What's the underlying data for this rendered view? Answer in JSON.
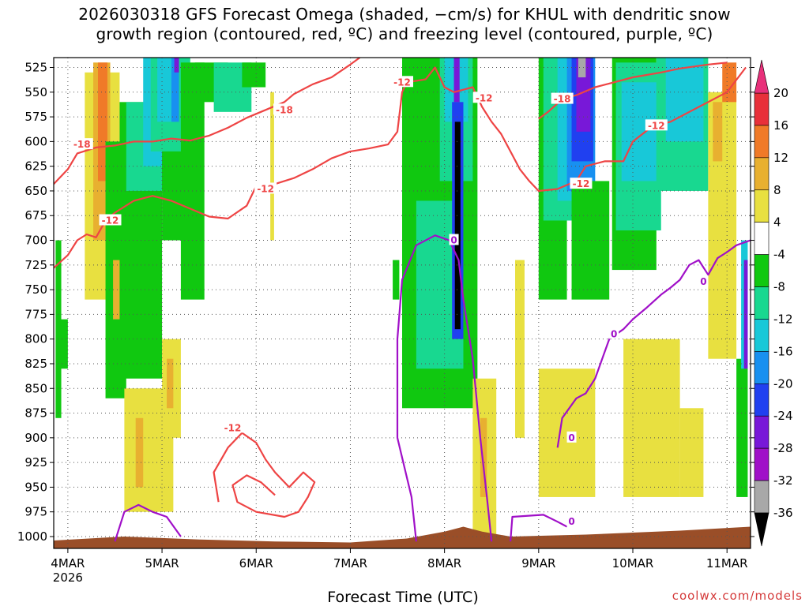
{
  "title_line1": "2026030318 GFS Forecast Omega (shaded, −cm/s) for KHUL with dendritic snow",
  "title_line2": "growth region (contoured, red, ºC) and freezing level (contoured, purple, ºC)",
  "credit": "coolwx.com/models",
  "chart_data": {
    "type": "heatmap",
    "xlabel": "Forecast Time (UTC)",
    "ylabel": "",
    "x_ticks": [
      "4MAR",
      "5MAR",
      "6MAR",
      "7MAR",
      "8MAR",
      "9MAR",
      "10MAR",
      "11MAR"
    ],
    "x_tick_sublabel": "2026",
    "y_ticks": [
      525,
      550,
      575,
      600,
      625,
      650,
      675,
      700,
      725,
      750,
      775,
      800,
      825,
      850,
      875,
      900,
      925,
      950,
      975,
      1000
    ],
    "ylim": [
      515,
      1012
    ],
    "xlim_days": [
      3.85,
      11.25
    ],
    "colorbar": {
      "labels": [
        20,
        16,
        12,
        8,
        4,
        -4,
        -8,
        -12,
        -16,
        -20,
        -24,
        -28,
        -32,
        -36
      ],
      "bins": [
        {
          "from": 20,
          "to": 16,
          "color": "#e8303a"
        },
        {
          "from": 16,
          "to": 12,
          "color": "#f07a28"
        },
        {
          "from": 12,
          "to": 8,
          "color": "#e8b030"
        },
        {
          "from": 8,
          "to": 4,
          "color": "#e8e040"
        },
        {
          "from": 4,
          "to": -4,
          "color": "#ffffff"
        },
        {
          "from": -4,
          "to": -8,
          "color": "#10c810"
        },
        {
          "from": -8,
          "to": -12,
          "color": "#18d890"
        },
        {
          "from": -12,
          "to": -16,
          "color": "#18c8d8"
        },
        {
          "from": -16,
          "to": -20,
          "color": "#1890f0"
        },
        {
          "from": -20,
          "to": -24,
          "color": "#2040f0"
        },
        {
          "from": -24,
          "to": -28,
          "color": "#7818d8"
        },
        {
          "from": -28,
          "to": -32,
          "color": "#a010c8"
        },
        {
          "from": -32,
          "to": -36,
          "color": "#a8a8a8"
        }
      ],
      "top_arrow_color": "#e8307a",
      "bottom_arrow_color": "#000000"
    },
    "omega_patches": [
      {
        "t0": 3.87,
        "t1": 3.93,
        "p0": 700,
        "p1": 880,
        "color": "#10c810"
      },
      {
        "t0": 3.92,
        "t1": 4.0,
        "p0": 780,
        "p1": 830,
        "color": "#10c810"
      },
      {
        "t0": 4.18,
        "t1": 4.55,
        "p0": 530,
        "p1": 760,
        "color": "#e8e040"
      },
      {
        "t0": 4.27,
        "t1": 4.45,
        "p0": 520,
        "p1": 700,
        "color": "#e8b030"
      },
      {
        "t0": 4.32,
        "t1": 4.42,
        "p0": 520,
        "p1": 640,
        "color": "#f07a28"
      },
      {
        "t0": 4.4,
        "t1": 4.62,
        "p0": 600,
        "p1": 860,
        "color": "#10c810"
      },
      {
        "t0": 4.55,
        "t1": 5.0,
        "p0": 560,
        "p1": 840,
        "color": "#10c810"
      },
      {
        "t0": 4.62,
        "t1": 5.05,
        "p0": 560,
        "p1": 650,
        "color": "#18d890"
      },
      {
        "t0": 4.8,
        "t1": 5.05,
        "p0": 515,
        "p1": 625,
        "color": "#18c8d8"
      },
      {
        "t0": 5.0,
        "t1": 5.35,
        "p0": 560,
        "p1": 700,
        "color": "#10c810"
      },
      {
        "t0": 4.88,
        "t1": 5.3,
        "p0": 515,
        "p1": 610,
        "color": "#18d890"
      },
      {
        "t0": 4.95,
        "t1": 5.15,
        "p0": 515,
        "p1": 580,
        "color": "#18c8d8"
      },
      {
        "t0": 5.1,
        "t1": 5.18,
        "p0": 515,
        "p1": 580,
        "color": "#1890f0"
      },
      {
        "t0": 5.13,
        "t1": 5.18,
        "p0": 515,
        "p1": 530,
        "color": "#7818d8"
      },
      {
        "t0": 5.2,
        "t1": 5.45,
        "p0": 520,
        "p1": 760,
        "color": "#10c810"
      },
      {
        "t0": 5.35,
        "t1": 5.7,
        "p0": 520,
        "p1": 560,
        "color": "#10c810"
      },
      {
        "t0": 5.55,
        "t1": 5.95,
        "p0": 520,
        "p1": 570,
        "color": "#18d890"
      },
      {
        "t0": 5.85,
        "t1": 6.1,
        "p0": 520,
        "p1": 545,
        "color": "#10c810"
      },
      {
        "t0": 4.6,
        "t1": 5.12,
        "p0": 850,
        "p1": 975,
        "color": "#e8e040"
      },
      {
        "t0": 4.72,
        "t1": 4.8,
        "p0": 880,
        "p1": 950,
        "color": "#e8b030"
      },
      {
        "t0": 5.0,
        "t1": 5.2,
        "p0": 800,
        "p1": 900,
        "color": "#e8e040"
      },
      {
        "t0": 5.05,
        "t1": 5.12,
        "p0": 820,
        "p1": 870,
        "color": "#e8b030"
      },
      {
        "t0": 4.48,
        "t1": 4.55,
        "p0": 720,
        "p1": 780,
        "color": "#e8b030"
      },
      {
        "t0": 6.15,
        "t1": 6.19,
        "p0": 550,
        "p1": 700,
        "color": "#e8e040"
      },
      {
        "t0": 7.45,
        "t1": 7.52,
        "p0": 720,
        "p1": 760,
        "color": "#10c810"
      },
      {
        "t0": 7.55,
        "t1": 8.35,
        "p0": 515,
        "p1": 870,
        "color": "#10c810"
      },
      {
        "t0": 7.7,
        "t1": 8.2,
        "p0": 660,
        "p1": 830,
        "color": "#18d890"
      },
      {
        "t0": 7.95,
        "t1": 8.3,
        "p0": 515,
        "p1": 640,
        "color": "#18d890"
      },
      {
        "t0": 8.0,
        "t1": 8.25,
        "p0": 515,
        "p1": 580,
        "color": "#18c8d8"
      },
      {
        "t0": 8.08,
        "t1": 8.2,
        "p0": 560,
        "p1": 800,
        "color": "#2040f0"
      },
      {
        "t0": 8.11,
        "t1": 8.17,
        "p0": 580,
        "p1": 790,
        "color": "#000000"
      },
      {
        "t0": 8.1,
        "t1": 8.16,
        "p0": 515,
        "p1": 560,
        "color": "#7818d8"
      },
      {
        "t0": 8.3,
        "t1": 8.55,
        "p0": 840,
        "p1": 1000,
        "color": "#e8e040"
      },
      {
        "t0": 8.38,
        "t1": 8.45,
        "p0": 880,
        "p1": 960,
        "color": "#e8b030"
      },
      {
        "t0": 8.75,
        "t1": 8.85,
        "p0": 720,
        "p1": 900,
        "color": "#e8e040"
      },
      {
        "t0": 9.0,
        "t1": 9.3,
        "p0": 515,
        "p1": 760,
        "color": "#10c810"
      },
      {
        "t0": 9.05,
        "t1": 9.55,
        "p0": 515,
        "p1": 680,
        "color": "#18d890"
      },
      {
        "t0": 9.2,
        "t1": 9.5,
        "p0": 515,
        "p1": 660,
        "color": "#18c8d8"
      },
      {
        "t0": 9.3,
        "t1": 9.6,
        "p0": 515,
        "p1": 650,
        "color": "#1890f0"
      },
      {
        "t0": 9.35,
        "t1": 9.58,
        "p0": 515,
        "p1": 620,
        "color": "#2040f0"
      },
      {
        "t0": 9.4,
        "t1": 9.55,
        "p0": 515,
        "p1": 590,
        "color": "#7818d8"
      },
      {
        "t0": 9.42,
        "t1": 9.5,
        "p0": 515,
        "p1": 535,
        "color": "#a8a8a8"
      },
      {
        "t0": 9.35,
        "t1": 9.75,
        "p0": 640,
        "p1": 760,
        "color": "#10c810"
      },
      {
        "t0": 9.78,
        "t1": 10.25,
        "p0": 515,
        "p1": 730,
        "color": "#10c810"
      },
      {
        "t0": 9.82,
        "t1": 10.3,
        "p0": 520,
        "p1": 690,
        "color": "#18d890"
      },
      {
        "t0": 9.88,
        "t1": 10.25,
        "p0": 540,
        "p1": 640,
        "color": "#18c8d8"
      },
      {
        "t0": 10.25,
        "t1": 10.8,
        "p0": 515,
        "p1": 650,
        "color": "#18d890"
      },
      {
        "t0": 10.35,
        "t1": 10.75,
        "p0": 515,
        "p1": 600,
        "color": "#18c8d8"
      },
      {
        "t0": 9.0,
        "t1": 9.6,
        "p0": 830,
        "p1": 960,
        "color": "#e8e040"
      },
      {
        "t0": 9.2,
        "t1": 9.45,
        "p0": 890,
        "p1": 945,
        "color": "#e8e040"
      },
      {
        "t0": 9.9,
        "t1": 10.5,
        "p0": 800,
        "p1": 960,
        "color": "#e8e040"
      },
      {
        "t0": 10.5,
        "t1": 10.75,
        "p0": 870,
        "p1": 960,
        "color": "#e8e040"
      },
      {
        "t0": 10.8,
        "t1": 11.1,
        "p0": 550,
        "p1": 820,
        "color": "#e8e040"
      },
      {
        "t0": 10.85,
        "t1": 10.95,
        "p0": 560,
        "p1": 620,
        "color": "#e8b030"
      },
      {
        "t0": 10.95,
        "t1": 11.1,
        "p0": 520,
        "p1": 560,
        "color": "#f07a28"
      },
      {
        "t0": 11.1,
        "t1": 11.22,
        "p0": 820,
        "p1": 960,
        "color": "#10c810"
      },
      {
        "t0": 11.15,
        "t1": 11.22,
        "p0": 700,
        "p1": 830,
        "color": "#18c8d8"
      },
      {
        "t0": 11.18,
        "t1": 11.22,
        "p0": 720,
        "p1": 830,
        "color": "#7818d8"
      }
    ],
    "contours": [
      {
        "color": "#ee4444",
        "label": "-12",
        "label_at": [
          4.45,
          680
        ],
        "points": [
          [
            3.85,
            728
          ],
          [
            4.0,
            715
          ],
          [
            4.1,
            700
          ],
          [
            4.2,
            694
          ],
          [
            4.3,
            697
          ],
          [
            4.4,
            680
          ],
          [
            4.5,
            672
          ],
          [
            4.7,
            660
          ],
          [
            4.9,
            655
          ],
          [
            5.1,
            660
          ],
          [
            5.3,
            668
          ],
          [
            5.5,
            676
          ],
          [
            5.7,
            678
          ],
          [
            5.9,
            665
          ],
          [
            6.0,
            645
          ],
          [
            6.2,
            643
          ],
          [
            6.4,
            637
          ],
          [
            6.6,
            628
          ],
          [
            6.8,
            617
          ],
          [
            7.0,
            610
          ],
          [
            7.2,
            607
          ],
          [
            7.4,
            603
          ],
          [
            7.5,
            590
          ],
          [
            7.55,
            550
          ],
          [
            7.6,
            540
          ],
          [
            7.8,
            537
          ],
          [
            7.9,
            525
          ],
          [
            8.0,
            545
          ],
          [
            8.1,
            550
          ],
          [
            8.3,
            545
          ],
          [
            8.4,
            565
          ],
          [
            8.5,
            580
          ],
          [
            8.6,
            592
          ],
          [
            8.7,
            610
          ],
          [
            8.8,
            628
          ],
          [
            8.9,
            640
          ],
          [
            9.0,
            650
          ],
          [
            9.2,
            648
          ],
          [
            9.4,
            640
          ],
          [
            9.5,
            625
          ],
          [
            9.7,
            620
          ],
          [
            9.9,
            620
          ],
          [
            10.0,
            600
          ],
          [
            10.2,
            585
          ],
          [
            10.4,
            580
          ],
          [
            10.6,
            570
          ],
          [
            10.8,
            560
          ],
          [
            11.0,
            550
          ],
          [
            11.2,
            525
          ]
        ]
      },
      {
        "color": "#ee4444",
        "label": "-18",
        "label_at": [
          4.15,
          603
        ],
        "points": [
          [
            3.85,
            643
          ],
          [
            4.0,
            628
          ],
          [
            4.1,
            612
          ],
          [
            4.3,
            606
          ],
          [
            4.5,
            604
          ],
          [
            4.7,
            600
          ],
          [
            4.9,
            600
          ],
          [
            5.1,
            597
          ],
          [
            5.3,
            599
          ],
          [
            5.5,
            594
          ],
          [
            5.7,
            586
          ],
          [
            5.9,
            576
          ],
          [
            6.1,
            568
          ],
          [
            6.3,
            560
          ],
          [
            6.4,
            552
          ],
          [
            6.6,
            542
          ],
          [
            6.8,
            535
          ],
          [
            7.0,
            522
          ],
          [
            7.1,
            515
          ]
        ]
      },
      {
        "color": "#ee4444",
        "label": "-18",
        "label_at": [
          9.25,
          557
        ],
        "points": [
          [
            9.0,
            577
          ],
          [
            9.1,
            570
          ],
          [
            9.25,
            557
          ],
          [
            9.4,
            553
          ],
          [
            9.6,
            545
          ],
          [
            9.8,
            540
          ],
          [
            10.0,
            535
          ],
          [
            10.3,
            530
          ],
          [
            10.5,
            526
          ],
          [
            10.8,
            522
          ],
          [
            11.0,
            520
          ]
        ]
      },
      {
        "color": "#ee4444",
        "label": "-12",
        "label_at": [
          5.75,
          890
        ],
        "points": [
          [
            5.6,
            965
          ],
          [
            5.55,
            935
          ],
          [
            5.7,
            910
          ],
          [
            5.85,
            895
          ],
          [
            6.0,
            905
          ],
          [
            6.1,
            922
          ],
          [
            6.2,
            935
          ],
          [
            6.35,
            950
          ],
          [
            6.5,
            935
          ],
          [
            6.62,
            945
          ],
          [
            6.55,
            960
          ],
          [
            6.45,
            975
          ],
          [
            6.3,
            980
          ],
          [
            6.0,
            975
          ],
          [
            5.8,
            965
          ],
          [
            5.75,
            948
          ],
          [
            5.9,
            938
          ],
          [
            6.05,
            945
          ],
          [
            6.2,
            958
          ]
        ]
      },
      {
        "color": "#a010c8",
        "label": "0",
        "label_at": [
          8.1,
          700
        ],
        "points": [
          [
            4.5,
            1005
          ],
          [
            4.6,
            975
          ],
          [
            4.75,
            968
          ],
          [
            4.9,
            975
          ],
          [
            5.05,
            980
          ],
          [
            5.2,
            1000
          ]
        ]
      },
      {
        "color": "#a010c8",
        "label": "0",
        "label_at": [
          8.1,
          700
        ],
        "points": [
          [
            7.7,
            1005
          ],
          [
            7.65,
            960
          ],
          [
            7.5,
            900
          ],
          [
            7.5,
            800
          ],
          [
            7.55,
            740
          ],
          [
            7.7,
            705
          ],
          [
            7.9,
            695
          ],
          [
            8.05,
            700
          ],
          [
            8.15,
            720
          ],
          [
            8.2,
            760
          ],
          [
            8.3,
            820
          ],
          [
            8.38,
            900
          ],
          [
            8.45,
            960
          ],
          [
            8.5,
            1005
          ]
        ]
      },
      {
        "color": "#a010c8",
        "label": "0",
        "label_at": [
          9.35,
          905
        ],
        "points": [
          [
            8.7,
            1005
          ],
          [
            8.72,
            980
          ],
          [
            9.05,
            978
          ],
          [
            9.2,
            985
          ],
          [
            9.3,
            990
          ]
        ]
      },
      {
        "color": "#a010c8",
        "label": "0",
        "label_at": [
          9.8,
          795
        ],
        "points": [
          [
            9.2,
            910
          ],
          [
            9.25,
            880
          ],
          [
            9.4,
            860
          ],
          [
            9.5,
            855
          ],
          [
            9.6,
            840
          ],
          [
            9.75,
            800
          ],
          [
            9.9,
            790
          ],
          [
            10.0,
            780
          ],
          [
            10.15,
            768
          ],
          [
            10.3,
            755
          ],
          [
            10.4,
            748
          ],
          [
            10.5,
            740
          ],
          [
            10.6,
            725
          ],
          [
            10.7,
            720
          ],
          [
            10.8,
            735
          ],
          [
            10.9,
            718
          ],
          [
            11.0,
            712
          ],
          [
            11.1,
            705
          ],
          [
            11.25,
            700
          ]
        ]
      }
    ],
    "terrain": {
      "color": "#9a4e28",
      "points": [
        [
          3.85,
          1004
        ],
        [
          4.6,
          1000
        ],
        [
          5.4,
          1003
        ],
        [
          6.2,
          1005
        ],
        [
          7.0,
          1006
        ],
        [
          7.6,
          1002
        ],
        [
          8.0,
          995
        ],
        [
          8.2,
          990
        ],
        [
          8.4,
          995
        ],
        [
          8.7,
          1000
        ],
        [
          9.5,
          998
        ],
        [
          10.5,
          994
        ],
        [
          11.25,
          990
        ]
      ]
    }
  }
}
